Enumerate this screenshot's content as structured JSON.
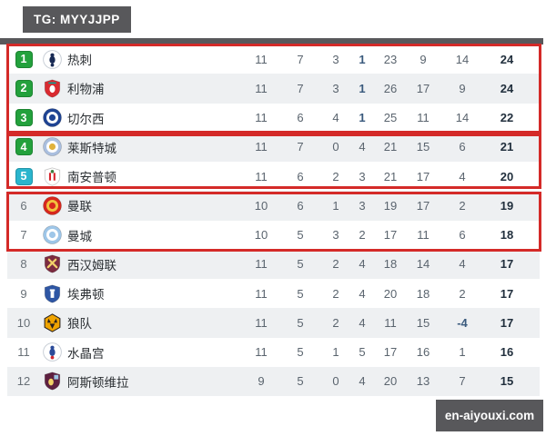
{
  "header": {
    "tag_label": "TG: MYYJJPP"
  },
  "watermark": {
    "label": "en-aiyouxi.com"
  },
  "colors": {
    "accent_red_box": "#d42a28",
    "position_badge_green": "#23a13c",
    "position_badge_cyan": "#2ab5cd",
    "dark_bar": "#58585b",
    "row_alternate": "#eef0f2",
    "stat_number": "#5a646e",
    "points_bold": "#212f3d",
    "highlight_number": "#3a5a7d"
  },
  "annotations": {
    "red_boxes_around_positions": [
      [
        1,
        3
      ],
      [
        4,
        5
      ],
      [
        6,
        7
      ]
    ]
  },
  "crests": {
    "tottenham-crest": {
      "type": "bird",
      "colors": [
        "#ffffff",
        "#182a54",
        "#182a54"
      ]
    },
    "liverpool-crest": {
      "type": "shield",
      "emblem": "bird",
      "colors": [
        "#d92a30",
        "#ffffff",
        "#00a398"
      ]
    },
    "chelsea-crest": {
      "type": "rings",
      "colors": [
        "#1f4494",
        "#ffffff",
        "#1f4494"
      ]
    },
    "leicester-crest": {
      "type": "rings",
      "colors": [
        "#aabfdf",
        "#ffffff",
        "#e0b23c"
      ]
    },
    "southampton-crest": {
      "type": "shield",
      "emblem": "stripes",
      "colors": [
        "#ffffff",
        "#d7242d",
        "#3f7d3f"
      ]
    },
    "man-utd-crest": {
      "type": "rings",
      "colors": [
        "#d7281e",
        "#f2c23e",
        "#d7281e"
      ]
    },
    "man-city-crest": {
      "type": "rings",
      "colors": [
        "#9ec6e8",
        "#ffffff",
        "#9ec6e8"
      ]
    },
    "west-ham-crest": {
      "type": "shield",
      "emblem": "hammers",
      "colors": [
        "#7c2b40",
        "#f1d06a",
        "#9cc3e0"
      ]
    },
    "everton-crest": {
      "type": "shield",
      "emblem": "tower",
      "colors": [
        "#2e56a4",
        "#ffffff",
        "#2e56a4"
      ]
    },
    "wolves-crest": {
      "type": "hex",
      "colors": [
        "#f0a400",
        "#28211f"
      ]
    },
    "crystal-palace-crest": {
      "type": "bird",
      "colors": [
        "#ffffff",
        "#2a4a99",
        "#cf2a33"
      ]
    },
    "aston-villa-crest": {
      "type": "shield",
      "emblem": "lion",
      "colors": [
        "#5e2040",
        "#f2d266",
        "#9dc5e3"
      ]
    }
  },
  "table": {
    "rows": [
      {
        "position": "1",
        "pos_style": "green",
        "team": "热刺",
        "crest": "tottenham-crest",
        "played": "11",
        "wins": "7",
        "draws": "3",
        "losses": "1",
        "losses_bold": true,
        "gf": "23",
        "ga": "9",
        "gd": "14",
        "points": "24"
      },
      {
        "position": "2",
        "pos_style": "green",
        "team": "利物浦",
        "crest": "liverpool-crest",
        "played": "11",
        "wins": "7",
        "draws": "3",
        "losses": "1",
        "losses_bold": true,
        "gf": "26",
        "ga": "17",
        "gd": "9",
        "points": "24"
      },
      {
        "position": "3",
        "pos_style": "green",
        "team": "切尔西",
        "crest": "chelsea-crest",
        "played": "11",
        "wins": "6",
        "draws": "4",
        "losses": "1",
        "losses_bold": true,
        "gf": "25",
        "ga": "11",
        "gd": "14",
        "points": "22"
      },
      {
        "position": "4",
        "pos_style": "green",
        "team": "莱斯特城",
        "crest": "leicester-crest",
        "played": "11",
        "wins": "7",
        "draws": "0",
        "losses": "4",
        "losses_bold": false,
        "gf": "21",
        "ga": "15",
        "gd": "6",
        "points": "21"
      },
      {
        "position": "5",
        "pos_style": "cyan",
        "team": "南安普顿",
        "crest": "southampton-crest",
        "played": "11",
        "wins": "6",
        "draws": "2",
        "losses": "3",
        "losses_bold": false,
        "gf": "21",
        "ga": "17",
        "gd": "4",
        "points": "20"
      },
      {
        "position": "6",
        "pos_style": "plain",
        "team": "曼联",
        "crest": "man-utd-crest",
        "played": "10",
        "wins": "6",
        "draws": "1",
        "losses": "3",
        "losses_bold": false,
        "gf": "19",
        "ga": "17",
        "gd": "2",
        "points": "19"
      },
      {
        "position": "7",
        "pos_style": "plain",
        "team": "曼城",
        "crest": "man-city-crest",
        "played": "10",
        "wins": "5",
        "draws": "3",
        "losses": "2",
        "losses_bold": false,
        "gf": "17",
        "ga": "11",
        "gd": "6",
        "points": "18"
      },
      {
        "position": "8",
        "pos_style": "plain",
        "team": "西汉姆联",
        "crest": "west-ham-crest",
        "played": "11",
        "wins": "5",
        "draws": "2",
        "losses": "4",
        "losses_bold": false,
        "gf": "18",
        "ga": "14",
        "gd": "4",
        "points": "17"
      },
      {
        "position": "9",
        "pos_style": "plain",
        "team": "埃弗顿",
        "crest": "everton-crest",
        "played": "11",
        "wins": "5",
        "draws": "2",
        "losses": "4",
        "losses_bold": false,
        "gf": "20",
        "ga": "18",
        "gd": "2",
        "points": "17"
      },
      {
        "position": "10",
        "pos_style": "plain",
        "team": "狼队",
        "crest": "wolves-crest",
        "played": "11",
        "wins": "5",
        "draws": "2",
        "losses": "4",
        "losses_bold": false,
        "gf": "11",
        "ga": "15",
        "gd": "-4",
        "points": "17"
      },
      {
        "position": "11",
        "pos_style": "plain",
        "team": "水晶宫",
        "crest": "crystal-palace-crest",
        "played": "11",
        "wins": "5",
        "draws": "1",
        "losses": "5",
        "losses_bold": false,
        "gf": "17",
        "ga": "16",
        "gd": "1",
        "points": "16"
      },
      {
        "position": "12",
        "pos_style": "plain",
        "team": "阿斯顿维拉",
        "crest": "aston-villa-crest",
        "played": "9",
        "wins": "5",
        "draws": "0",
        "losses": "4",
        "losses_bold": false,
        "gf": "20",
        "ga": "13",
        "gd": "7",
        "points": "15"
      }
    ]
  }
}
